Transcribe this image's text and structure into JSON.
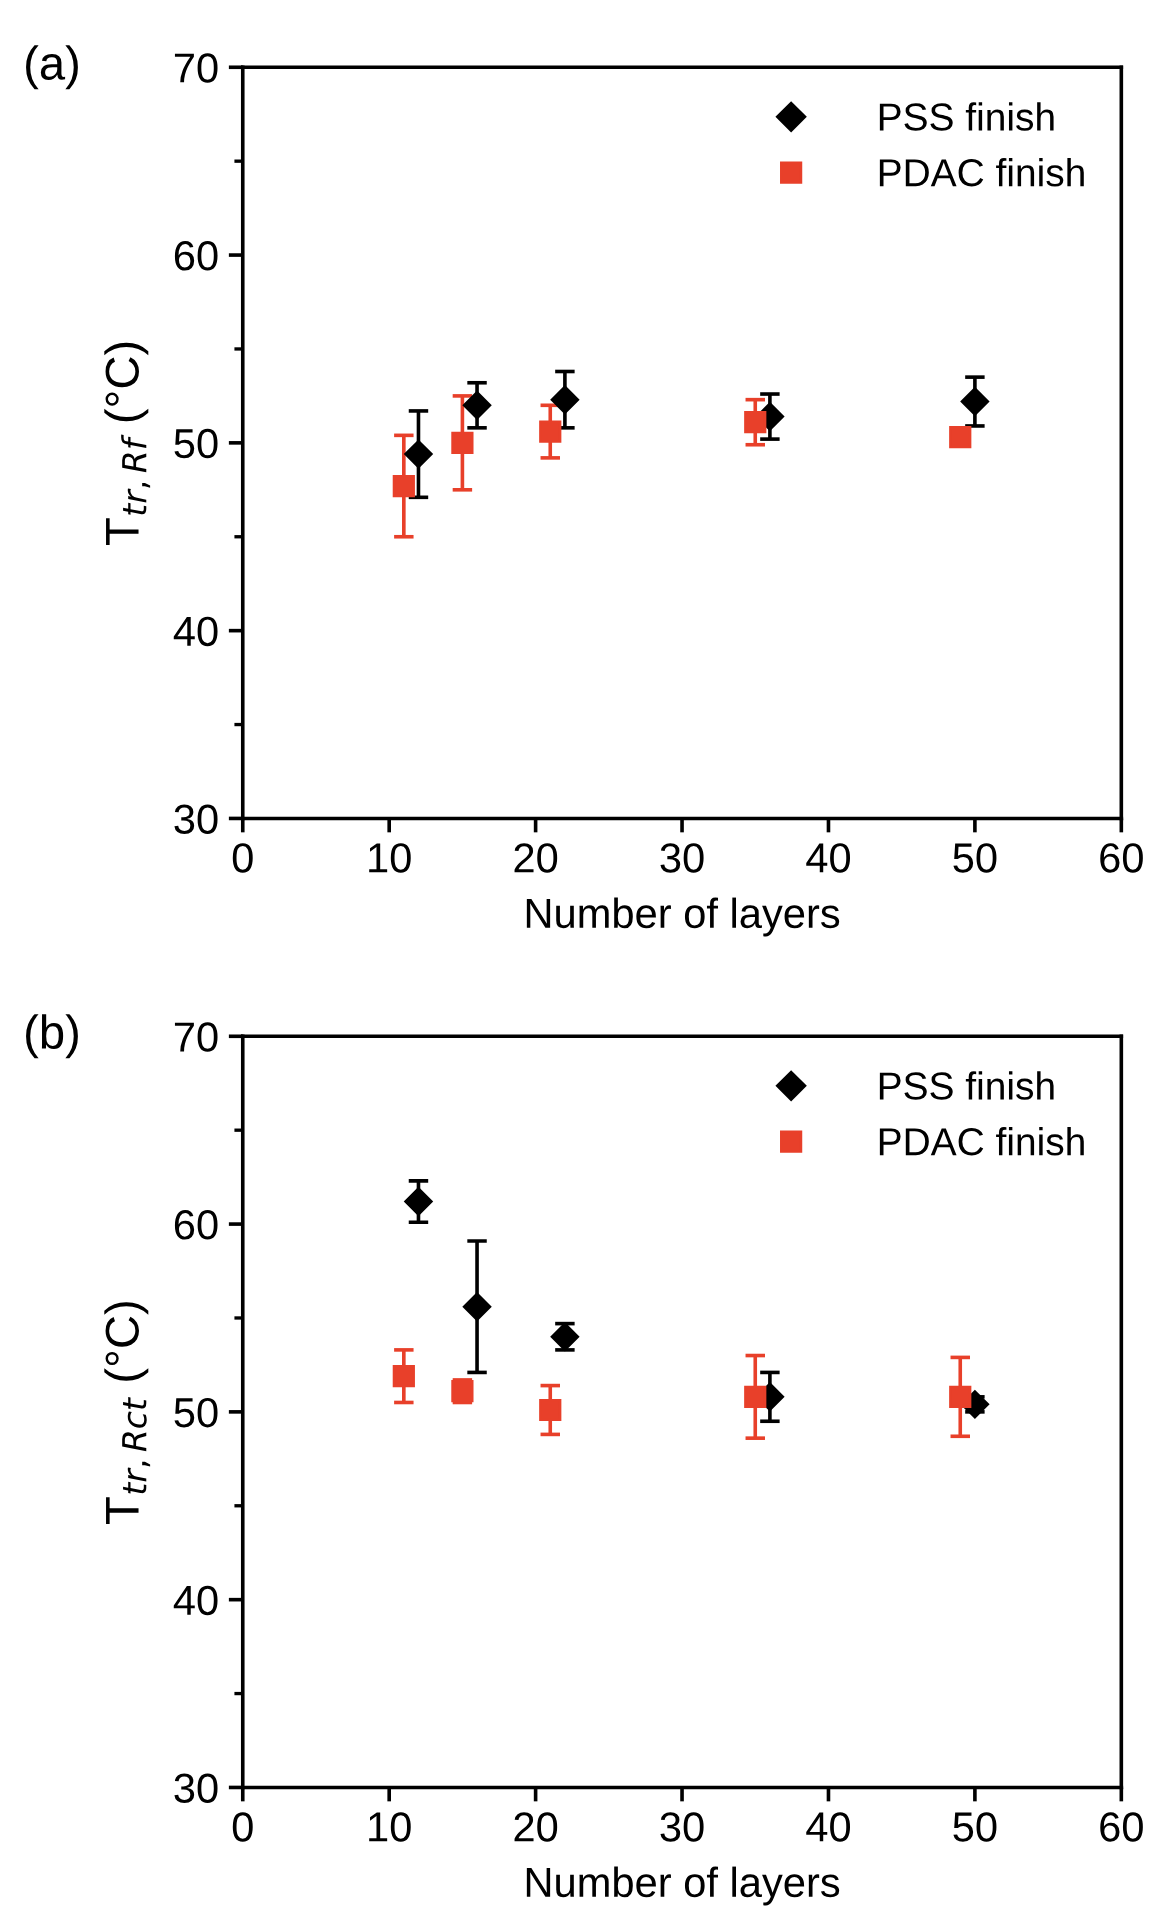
{
  "chart_data": [
    {
      "type": "scatter",
      "annotations": [
        "(a)"
      ],
      "xlabel": "Number of layers",
      "ylabel": "T$_{tr,Rf}$ (°C)",
      "xlim": [
        0,
        60
      ],
      "xticks": [
        0,
        10,
        20,
        30,
        40,
        50,
        60
      ],
      "ylim": [
        30,
        70
      ],
      "yticks": [
        30,
        40,
        50,
        60,
        70
      ],
      "legend": "top right",
      "grid": false,
      "series": [
        {
          "name": "PSS finish",
          "color": "#000000",
          "marker": "diamond",
          "x": [
            12,
            16,
            22,
            36,
            50
          ],
          "values": [
            49.4,
            52.0,
            52.3,
            51.4,
            52.2
          ],
          "errors": [
            2.3,
            1.2,
            1.5,
            1.2,
            1.3
          ]
        },
        {
          "name": "PDAC finish",
          "color": "#e8402a",
          "marker": "square",
          "x": [
            11,
            15,
            21,
            35,
            49
          ],
          "values": [
            47.7,
            50.0,
            50.6,
            51.1,
            50.3
          ],
          "errors": [
            2.7,
            2.5,
            1.4,
            1.2,
            null
          ]
        }
      ]
    },
    {
      "type": "scatter",
      "annotations": [
        "(b)"
      ],
      "xlabel": "Number of layers",
      "ylabel": "T$_{tr,Rct}$ (°C)",
      "xlim": [
        0,
        60
      ],
      "xticks": [
        0,
        10,
        20,
        30,
        40,
        50,
        60
      ],
      "ylim": [
        30,
        70
      ],
      "yticks": [
        30,
        40,
        50,
        60,
        70
      ],
      "legend": "top right",
      "grid": false,
      "series": [
        {
          "name": "PSS finish",
          "color": "#000000",
          "marker": "diamond",
          "x": [
            12,
            16,
            22,
            36,
            50
          ],
          "values": [
            61.2,
            55.6,
            54.0,
            50.8,
            50.4
          ],
          "errors": [
            1.1,
            3.5,
            0.7,
            1.3,
            0.4
          ]
        },
        {
          "name": "PDAC finish",
          "color": "#e8402a",
          "marker": "square",
          "x": [
            11,
            15,
            21,
            35,
            49
          ],
          "values": [
            51.9,
            51.1,
            50.1,
            50.8,
            50.8
          ],
          "errors": [
            1.4,
            0.6,
            1.3,
            2.2,
            2.1
          ]
        }
      ]
    }
  ]
}
